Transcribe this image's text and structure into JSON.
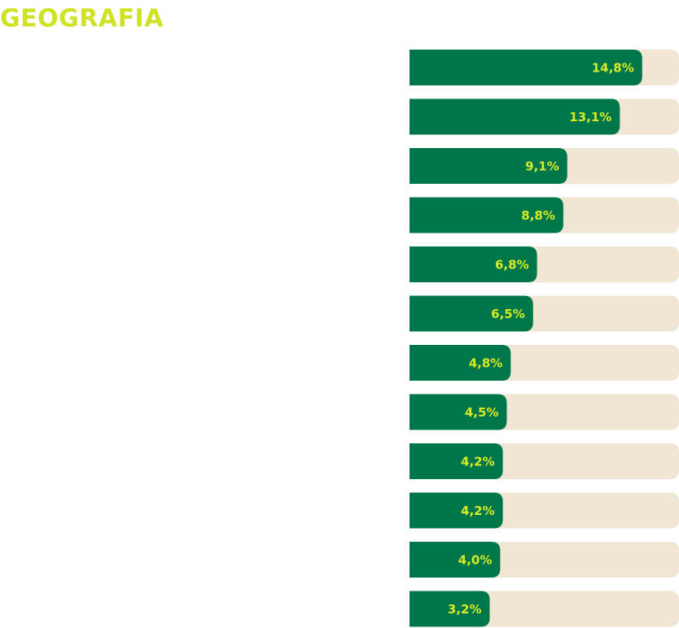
{
  "chart_data": {
    "type": "bar",
    "orientation": "horizontal",
    "title": "GEOGRAFIA",
    "values": [
      14.8,
      13.1,
      9.1,
      8.8,
      6.8,
      6.5,
      4.8,
      4.5,
      4.2,
      4.2,
      4.0,
      3.2
    ],
    "value_labels": [
      "14,8%",
      "13,1%",
      "9,1%",
      "8,8%",
      "6,8%",
      "6,5%",
      "4,8%",
      "4,5%",
      "4,2%",
      "4,2%",
      "4,0%",
      "3,2%"
    ],
    "color": "#00774a",
    "track_color": "#f0e6d3",
    "label_color": "#d6ea26",
    "xlim": [
      -2.9,
      17.6
    ]
  }
}
